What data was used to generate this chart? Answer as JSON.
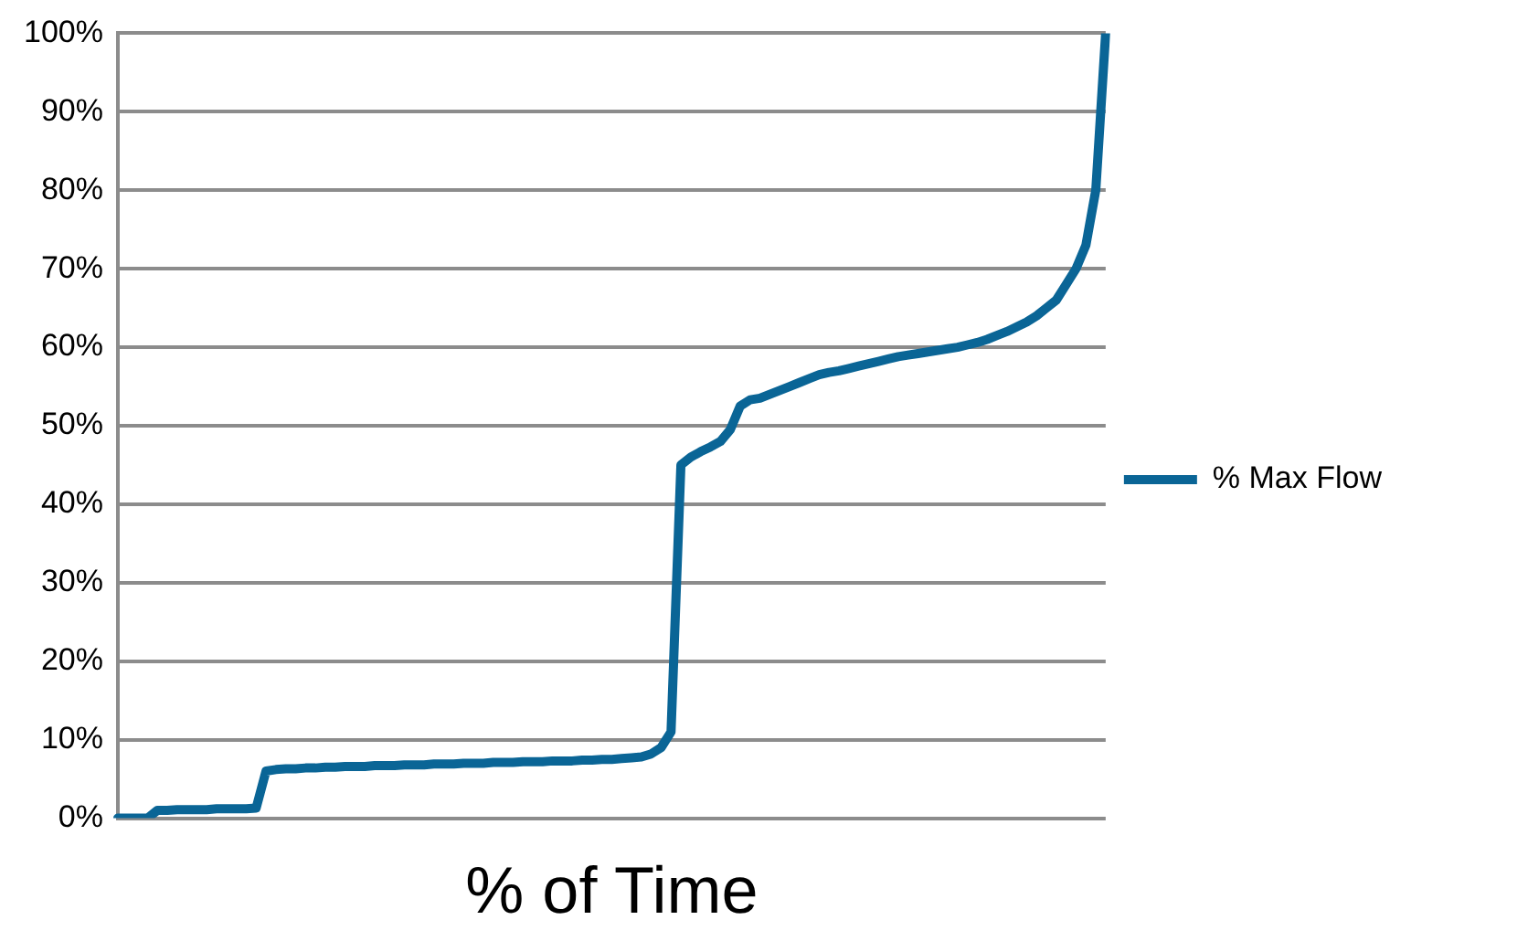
{
  "chart_data": {
    "type": "line",
    "xlabel": "% of Time",
    "categories": [
      null,
      null,
      null,
      null,
      null,
      null,
      null,
      null,
      null,
      null,
      null,
      null,
      null,
      null,
      null,
      null,
      null,
      null,
      null,
      null,
      null,
      null,
      null,
      null,
      null,
      null,
      null,
      null,
      null,
      null,
      null,
      null,
      null,
      null,
      null,
      null,
      null,
      null,
      null,
      null,
      null,
      null,
      null,
      null,
      null,
      null,
      null,
      null,
      null,
      null,
      null,
      null,
      null,
      null,
      null,
      null,
      null,
      null,
      null,
      null,
      null,
      null,
      null,
      null,
      null,
      null,
      null,
      null,
      null,
      null,
      null,
      null,
      null,
      null,
      null,
      null,
      null,
      null,
      null,
      null,
      null,
      null,
      null,
      null,
      null,
      null,
      null,
      null,
      null,
      null,
      null,
      null,
      null,
      null,
      null,
      null,
      null,
      null,
      null,
      null,
      null
    ],
    "series": [
      {
        "name": "% Max Flow",
        "color": "#0a6596",
        "values": [
          0,
          0,
          0,
          0,
          1.0,
          1.0,
          1.1,
          1.1,
          1.1,
          1.1,
          1.2,
          1.2,
          1.2,
          1.2,
          1.3,
          6.0,
          6.2,
          6.3,
          6.3,
          6.4,
          6.4,
          6.5,
          6.5,
          6.6,
          6.6,
          6.6,
          6.7,
          6.7,
          6.7,
          6.8,
          6.8,
          6.8,
          6.9,
          6.9,
          6.9,
          7.0,
          7.0,
          7.0,
          7.1,
          7.1,
          7.1,
          7.2,
          7.2,
          7.2,
          7.3,
          7.3,
          7.3,
          7.4,
          7.4,
          7.5,
          7.5,
          7.6,
          7.7,
          7.8,
          8.2,
          9,
          11,
          45,
          46,
          46.7,
          47.3,
          48,
          49.5,
          52.5,
          53.3,
          53.5,
          54,
          54.5,
          55,
          55.5,
          56,
          56.5,
          56.8,
          57,
          57.3,
          57.6,
          57.9,
          58.2,
          58.5,
          58.8,
          59,
          59.2,
          59.4,
          59.6,
          59.8,
          60,
          60.3,
          60.6,
          61,
          61.5,
          62,
          62.6,
          63.2,
          64,
          65,
          66,
          68,
          70,
          73,
          80,
          100
        ]
      }
    ],
    "ylim": [
      0,
      100
    ],
    "yticks": [
      {
        "value": 0,
        "label": "0%"
      },
      {
        "value": 10,
        "label": "10%"
      },
      {
        "value": 20,
        "label": "20%"
      },
      {
        "value": 30,
        "label": "30%"
      },
      {
        "value": 40,
        "label": "40%"
      },
      {
        "value": 50,
        "label": "50%"
      },
      {
        "value": 60,
        "label": "60%"
      },
      {
        "value": 70,
        "label": "70%"
      },
      {
        "value": 80,
        "label": "80%"
      },
      {
        "value": 90,
        "label": "90%"
      },
      {
        "value": 100,
        "label": "100%"
      }
    ],
    "grid": "y",
    "legend": "right",
    "marker": "none",
    "line_style": "solid",
    "tick_labels": "y"
  }
}
